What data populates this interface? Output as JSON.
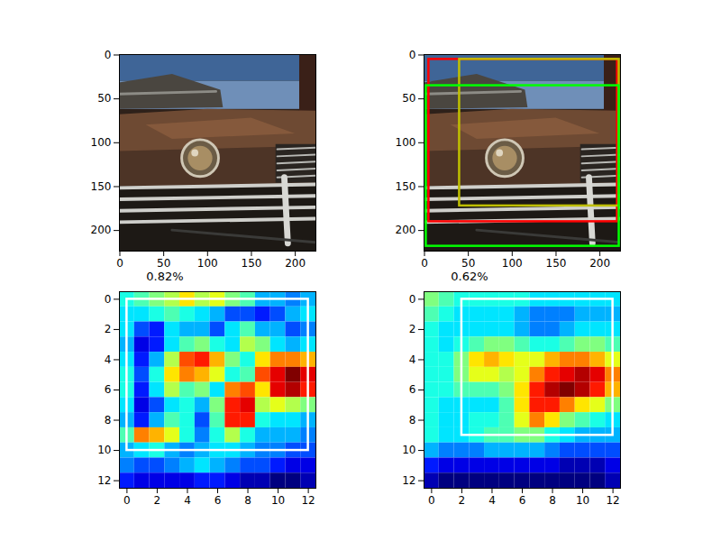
{
  "chart_data": [
    {
      "type": "image",
      "xlim": [
        -0.5,
        223.5
      ],
      "ylim": [
        223.5,
        -0.5
      ],
      "xticks": [
        0,
        50,
        100,
        150,
        200
      ],
      "yticks": [
        0,
        50,
        100,
        150,
        200
      ]
    },
    {
      "type": "image",
      "xlim": [
        -0.5,
        223.5
      ],
      "ylim": [
        223.5,
        -0.5
      ],
      "xticks": [
        0,
        50,
        100,
        150,
        200
      ],
      "yticks": [
        0,
        50,
        100,
        150,
        200
      ],
      "rectangles": [
        {
          "color": "#ff0000",
          "x": [
            5,
            220
          ],
          "y": [
            5,
            190
          ]
        },
        {
          "color": "#bfbf00",
          "x": [
            40,
            222
          ],
          "y": [
            5,
            172
          ]
        },
        {
          "color": "#00ff00",
          "x": [
            2,
            222
          ],
          "y": [
            35,
            218
          ]
        }
      ]
    },
    {
      "type": "heatmap",
      "title": "0.82%",
      "xlim": [
        -0.5,
        12.5
      ],
      "ylim": [
        12.5,
        -0.5
      ],
      "xticks": [
        0,
        2,
        4,
        6,
        8,
        10,
        12
      ],
      "yticks": [
        0,
        2,
        4,
        6,
        8,
        10,
        12
      ],
      "cells": [
        [
          0.4,
          0.45,
          0.5,
          0.55,
          0.65,
          0.55,
          0.6,
          0.5,
          0.45,
          0.3,
          0.3,
          0.25,
          0.3
        ],
        [
          0.35,
          0.35,
          0.4,
          0.45,
          0.4,
          0.35,
          0.3,
          0.2,
          0.2,
          0.15,
          0.2,
          0.3,
          0.35
        ],
        [
          0.35,
          0.2,
          0.15,
          0.35,
          0.3,
          0.3,
          0.2,
          0.35,
          0.45,
          0.3,
          0.3,
          0.2,
          0.25
        ],
        [
          0.3,
          0.1,
          0.15,
          0.35,
          0.45,
          0.5,
          0.4,
          0.35,
          0.55,
          0.5,
          0.35,
          0.3,
          0.35
        ],
        [
          0.35,
          0.15,
          0.3,
          0.55,
          0.8,
          0.85,
          0.7,
          0.5,
          0.4,
          0.65,
          0.75,
          0.75,
          0.7
        ],
        [
          0.4,
          0.2,
          0.4,
          0.65,
          0.75,
          0.7,
          0.6,
          0.4,
          0.45,
          0.8,
          0.9,
          1.0,
          0.9
        ],
        [
          0.4,
          0.15,
          0.35,
          0.55,
          0.45,
          0.5,
          0.35,
          0.75,
          0.8,
          0.65,
          0.9,
          0.95,
          0.85
        ],
        [
          0.35,
          0.1,
          0.2,
          0.35,
          0.4,
          0.3,
          0.5,
          0.85,
          0.9,
          0.55,
          0.6,
          0.55,
          0.5
        ],
        [
          0.3,
          0.15,
          0.3,
          0.45,
          0.4,
          0.2,
          0.45,
          0.85,
          0.85,
          0.4,
          0.35,
          0.35,
          0.3
        ],
        [
          0.45,
          0.75,
          0.7,
          0.6,
          0.4,
          0.25,
          0.4,
          0.55,
          0.4,
          0.3,
          0.3,
          0.3,
          0.25
        ],
        [
          0.3,
          0.35,
          0.4,
          0.3,
          0.25,
          0.3,
          0.35,
          0.35,
          0.3,
          0.25,
          0.25,
          0.2,
          0.2
        ],
        [
          0.25,
          0.2,
          0.2,
          0.25,
          0.3,
          0.35,
          0.3,
          0.25,
          0.2,
          0.2,
          0.15,
          0.1,
          0.1
        ],
        [
          0.15,
          0.1,
          0.1,
          0.1,
          0.1,
          0.15,
          0.15,
          0.1,
          0.05,
          0.05,
          0.0,
          0.0,
          0.05
        ]
      ],
      "rectangles": [
        {
          "color": "#ffffff",
          "x": [
            0,
            12
          ],
          "y": [
            0,
            10
          ]
        }
      ]
    },
    {
      "type": "heatmap",
      "title": "0.62%",
      "xlim": [
        -0.5,
        12.5
      ],
      "ylim": [
        12.5,
        -0.5
      ],
      "xticks": [
        0,
        2,
        4,
        6,
        8,
        10,
        12
      ],
      "yticks": [
        0,
        2,
        4,
        6,
        8,
        10,
        12
      ],
      "cells": [
        [
          0.5,
          0.45,
          0.4,
          0.4,
          0.4,
          0.4,
          0.4,
          0.35,
          0.35,
          0.35,
          0.35,
          0.35,
          0.35
        ],
        [
          0.45,
          0.4,
          0.35,
          0.35,
          0.35,
          0.35,
          0.3,
          0.25,
          0.25,
          0.25,
          0.3,
          0.3,
          0.3
        ],
        [
          0.4,
          0.35,
          0.35,
          0.35,
          0.35,
          0.35,
          0.3,
          0.25,
          0.25,
          0.3,
          0.35,
          0.35,
          0.35
        ],
        [
          0.4,
          0.35,
          0.4,
          0.45,
          0.5,
          0.5,
          0.45,
          0.4,
          0.4,
          0.45,
          0.5,
          0.5,
          0.45
        ],
        [
          0.4,
          0.4,
          0.5,
          0.65,
          0.7,
          0.65,
          0.6,
          0.6,
          0.7,
          0.75,
          0.75,
          0.7,
          0.6
        ],
        [
          0.4,
          0.4,
          0.5,
          0.6,
          0.6,
          0.55,
          0.6,
          0.75,
          0.85,
          0.9,
          0.95,
          0.9,
          0.75
        ],
        [
          0.4,
          0.4,
          0.45,
          0.45,
          0.45,
          0.5,
          0.65,
          0.85,
          0.95,
          1.0,
          0.95,
          0.85,
          0.7
        ],
        [
          0.4,
          0.35,
          0.35,
          0.35,
          0.35,
          0.45,
          0.65,
          0.85,
          0.85,
          0.75,
          0.65,
          0.6,
          0.5
        ],
        [
          0.4,
          0.35,
          0.35,
          0.4,
          0.4,
          0.45,
          0.6,
          0.75,
          0.65,
          0.5,
          0.45,
          0.4,
          0.35
        ],
        [
          0.4,
          0.35,
          0.35,
          0.4,
          0.45,
          0.45,
          0.5,
          0.5,
          0.4,
          0.35,
          0.3,
          0.3,
          0.3
        ],
        [
          0.3,
          0.25,
          0.25,
          0.25,
          0.3,
          0.3,
          0.3,
          0.3,
          0.25,
          0.2,
          0.2,
          0.2,
          0.2
        ],
        [
          0.15,
          0.1,
          0.1,
          0.1,
          0.1,
          0.1,
          0.1,
          0.1,
          0.1,
          0.05,
          0.05,
          0.05,
          0.1
        ],
        [
          0.05,
          0.0,
          0.0,
          0.0,
          0.0,
          0.0,
          0.0,
          0.0,
          0.0,
          0.0,
          0.0,
          0.0,
          0.05
        ]
      ],
      "rectangles": [
        {
          "color": "#ffffff",
          "x": [
            2,
            12
          ],
          "y": [
            0,
            9
          ]
        }
      ]
    }
  ]
}
